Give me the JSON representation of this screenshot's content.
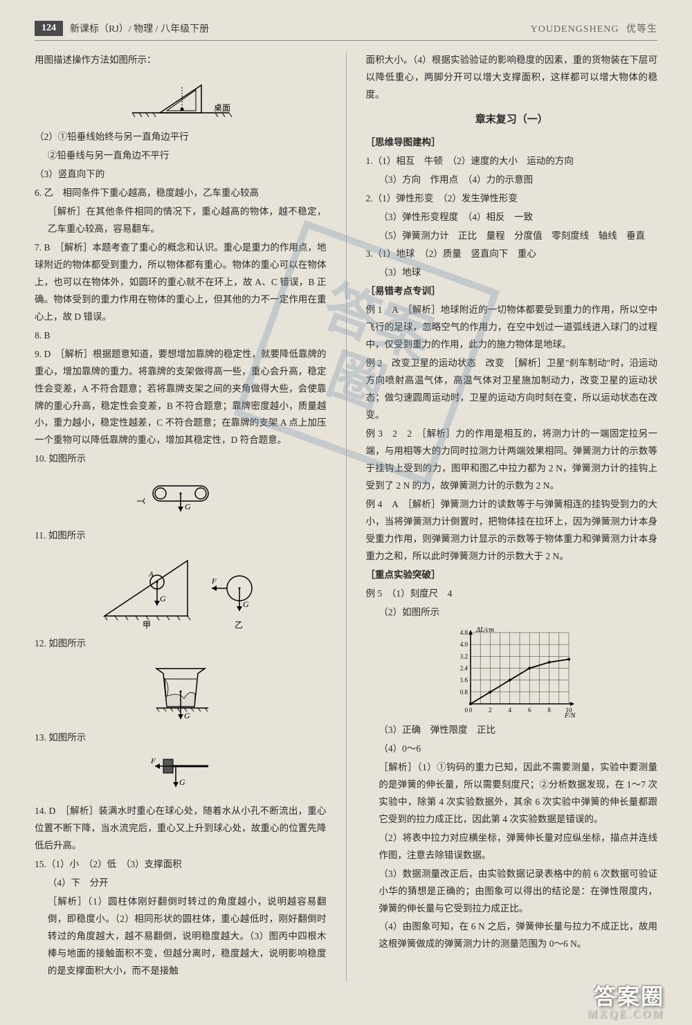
{
  "header": {
    "page_number": "124",
    "series": "新课标（RJ）/ 物理 / 八年级下册",
    "pinyin": "YOUDENGSHENG",
    "brand": "优等生"
  },
  "left": {
    "intro": "用图描述操作方法如图所示：",
    "fig1_label": "桌面",
    "i1": "（2）①铅垂线始终与另一直角边平行",
    "i2": "②铅垂线与另一直角边不平行",
    "i3": "（3）竖直向下的",
    "q6a": "6. 乙　相同条件下重心越高，稳度越小，乙车重心较高",
    "q6b": "［解析］在其他条件相同的情况下，重心越高的物体，越不稳定，乙车重心较高，容易翻车。",
    "q7a": "7. B　［解析］本题考查了重心的概念和认识。重心是重力的作用点，地球附近的物体都受到重力，所以物体都有重心。物体的重心可以在物体上，也可以在物体外，如圆环的重心就不在环上，故 A、C 错误，B 正确。物体受到的重力作用在物体的重心上，但其他的力不一定作用在重心上，故 D 错误。",
    "q8": "8. B",
    "q9a": "9. D　［解析］根据题意知道，要想增加靠牌的稳定性，就要降低靠牌的重心，增加靠牌的重力。将靠牌的支架做得高一些，重心会升高，稳定性会变差，A 不符合题意；若将靠牌支架之间的夹角做得大些，会使靠牌的重心升高，稳定性会变差，B 不符合题意；靠牌密度越小，质量越小，重力越小，稳定性越差，C 不符合题意；在靠牌的支架 A 点上加压一个重物可以降低靠牌的重心，增加其稳定性，D 符合题意。",
    "q10": "10. 如图所示",
    "q11": "11. 如图所示",
    "q12": "12. 如图所示",
    "q13": "13. 如图所示",
    "q14": "14. D　［解析］装满水时重心在球心处，随着水从小孔不断流出，重心位置不断下降，当水流完后，重心又上升到球心处，故重心的位置先降低后升高。",
    "q15a": "15.（1）小　（2）低　（3）支撑面积",
    "q15b": "（4）下　分开",
    "q15c": "［解析］（1）圆柱体刚好翻倒时转过的角度越小，说明越容易翻倒，即稳度小。（2）相同形状的圆柱体，重心越低时，刚好翻倒时转过的角度越大，越不易翻倒，说明稳度越大。（3）图丙中四根木棒与地面的接触面积不变，但越分离时，稳度越大，说明影响稳度的是支撑面积大小，而不是接触",
    "fig11_jia": "甲",
    "fig11_yi": "乙",
    "g_label": "G"
  },
  "right": {
    "cont": "面积大小。（4）根据实验验证的影响稳度的因素，重的货物装在下层可以降低重心，两脚分开可以增大支撑面积，这样都可以增大物体的稳度。",
    "chapter_title": "章末复习（一）",
    "sec1": "［思维导图建构］",
    "s1_1": "1.（1）相互　牛顿　（2）速度的大小　运动的方向",
    "s1_2": "（3）方向　作用点　（4）力的示意图",
    "s1_3": "2.（1）弹性形变　（2）发生弹性形变",
    "s1_4": "（3）弹性形变程度　（4）相反　一致",
    "s1_5": "（5）弹簧测力计　正比　量程　分度值　零刻度线　轴线　垂直",
    "s1_6": "3.（1）地球　（2）质量　竖直向下　重心",
    "s1_7": "（3）地球",
    "sec2": "［易错考点专训］",
    "ex1": "例 1　A　［解析］地球附近的一切物体都要受到重力的作用，所以空中飞行的足球，忽略空气的作用力，在空中划过一道弧线进入球门的过程中，仅受到重力的作用，此力的施力物体是地球。",
    "ex2": "例 2　改变卫星的运动状态　改变　［解析］卫星\"刹车制动\"时，沿运动方向喷射高温气体，高温气体对卫星施加制动力，改变卫星的运动状态；做匀速圆周运动时，卫星的运动方向时刻在变，所以运动状态在改变。",
    "ex3": "例 3　2　2　［解析］力的作用是相互的，将测力计的一端固定拉另一端，与用相等大的力同时拉测力计两端效果相同。弹簧测力计的示数等于挂钩上受到的力，图甲和图乙中拉力都为 2 N，弹簧测力计的挂钩上受到了 2 N 的力，故弹簧测力计的示数为 2 N。",
    "ex4": "例 4　A　［解析］弹簧测力计的读数等于与弹簧相连的挂钩受到力的大小，当将弹簧测力计倒置时，把物体挂在拉环上，因为弹簧测力计本身受重力作用，则弹簧测力计显示的示数等于物体重力和弹簧测力计本身重力之和，所以此时弹簧测力计的示数大于 2 N。",
    "sec3": "［重点实验突破］",
    "ex5_1": "例 5　（1）刻度尺　4",
    "ex5_2": "（2）如图所示",
    "ex5_3": "（3）正确　弹性限度　正比",
    "ex5_4": "（4）0～6",
    "ex5_ana1": "［解析］（1）①钩码的重力已知，因此不需要测量，实验中要测量的是弹簧的伸长量，所以需要刻度尺；②分析数据发现，在 1～7 次实验中，除第 4 次实验数据外，其余 6 次实验中弹簧的伸长量都跟它受到的拉力成正比，因此第 4 次实验数据是错误的。",
    "ex5_ana2": "（2）将表中拉力对应横坐标，弹簧伸长量对应纵坐标，描点并连线作图，注意去除错误数据。",
    "ex5_ana3": "（3）数据测量改正后，由实验数据记录表格中的前 6 次数据可验证小华的猜想是正确的；由图象可以得出的结论是：在弹性限度内，弹簧的伸长量与它受到拉力成正比。",
    "ex5_ana4": "（4）由图象可知，在 6 N 之后，弹簧伸长量与拉力不成正比，故用这根弹簧做成的弹簧测力计的测量范围为 0～6 N。"
  },
  "chart": {
    "type": "line",
    "x_label": "F/N",
    "y_label": "ΔL/cm",
    "x_ticks": [
      0,
      2,
      4,
      6,
      8,
      10
    ],
    "y_ticks": [
      0.8,
      1.6,
      2.4,
      3.2,
      4.0,
      4.8
    ],
    "points": [
      [
        0,
        0
      ],
      [
        2,
        0.8
      ],
      [
        4,
        1.6
      ],
      [
        6,
        2.4
      ],
      [
        8,
        2.8
      ],
      [
        10,
        3.0
      ]
    ],
    "grid_color": "#333",
    "line_color": "#000",
    "font_size": 9,
    "width": 170,
    "height": 120
  },
  "watermark": {
    "line1": "答案",
    "line2": "圈"
  },
  "footer": {
    "brand": "答案圈",
    "domain": "MXQE.COM"
  }
}
